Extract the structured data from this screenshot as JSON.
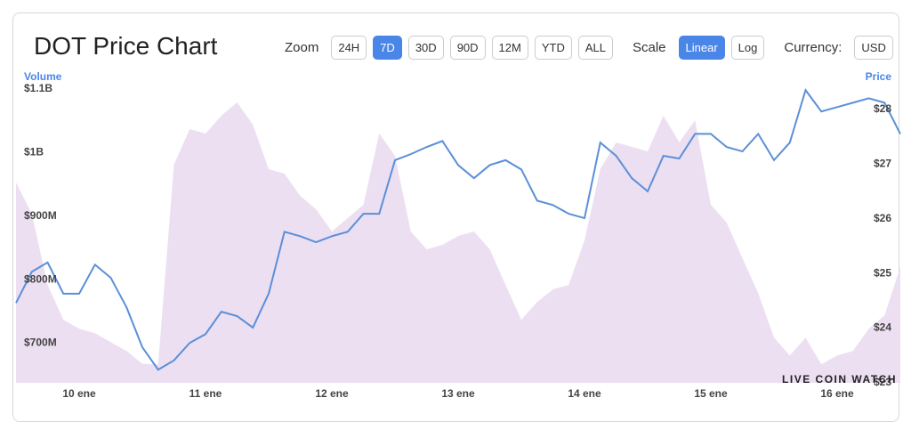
{
  "header": {
    "title": "DOT Price Chart",
    "zoom": {
      "label": "Zoom",
      "options": [
        "24H",
        "7D",
        "30D",
        "90D",
        "12M",
        "YTD",
        "ALL"
      ],
      "selected": "7D"
    },
    "scale": {
      "label": "Scale",
      "options": [
        "Linear",
        "Log"
      ],
      "selected": "Linear"
    },
    "currency": {
      "label": "Currency:",
      "options": [
        "USD"
      ]
    }
  },
  "watermark": "LIVE COIN WATCH",
  "chart_data": {
    "type": "line",
    "categories": [
      null,
      null,
      null,
      null,
      "10 ene",
      null,
      null,
      null,
      null,
      null,
      null,
      null,
      "11 ene",
      null,
      null,
      null,
      null,
      null,
      null,
      null,
      "12 ene",
      null,
      null,
      null,
      null,
      null,
      null,
      null,
      "13 ene",
      null,
      null,
      null,
      null,
      null,
      null,
      null,
      "14 ene",
      null,
      null,
      null,
      null,
      null,
      null,
      null,
      "15 ene",
      null,
      null,
      null,
      null,
      null,
      null,
      null,
      "16 ene",
      null,
      null,
      null,
      null
    ],
    "series": [
      {
        "name": "Volume",
        "type": "area",
        "color": "#ecdff1",
        "values": [
          971000000,
          922000000,
          810000000,
          755000000,
          741000000,
          734000000,
          720000000,
          706000000,
          686000000,
          685000000,
          999000000,
          1055000000,
          1048000000,
          1076000000,
          1097000000,
          1062000000,
          992000000,
          985000000,
          950000000,
          929000000,
          894000000,
          915000000,
          936000000,
          1048000000,
          1013000000,
          894000000,
          866000000,
          873000000,
          887000000,
          894000000,
          866000000,
          810000000,
          755000000,
          783000000,
          803000000,
          810000000,
          880000000,
          992000000,
          1034000000,
          1027000000,
          1020000000,
          1076000000,
          1034000000,
          1069000000,
          936000000,
          908000000,
          852000000,
          797000000,
          727000000,
          699000000,
          727000000,
          685000000,
          699000000,
          706000000,
          741000000,
          762000000,
          838000000
        ]
      },
      {
        "name": "Price",
        "axis": "y2",
        "color": "#5b8fd9",
        "values": [
          24.46,
          25.03,
          25.2,
          24.63,
          24.63,
          25.16,
          24.92,
          24.38,
          23.65,
          23.24,
          23.41,
          23.73,
          23.89,
          24.3,
          24.22,
          24.01,
          24.63,
          25.76,
          25.68,
          25.57,
          25.68,
          25.76,
          26.09,
          26.09,
          27.07,
          27.18,
          27.31,
          27.42,
          26.98,
          26.74,
          26.98,
          27.07,
          26.9,
          26.33,
          26.25,
          26.09,
          26.01,
          27.39,
          27.15,
          26.74,
          26.5,
          27.15,
          27.1,
          27.55,
          27.55,
          27.31,
          27.23,
          27.55,
          27.07,
          27.39,
          28.35,
          27.96,
          28.04,
          28.12,
          28.2,
          28.12,
          27.55
        ]
      }
    ],
    "ylim": [
      656000000,
      1118000000
    ],
    "yticks": [
      {
        "value": 700000000,
        "label": "$700M"
      },
      {
        "value": 800000000,
        "label": "$800M"
      },
      {
        "value": 900000000,
        "label": "$900M"
      },
      {
        "value": 1000000000,
        "label": "$1B"
      },
      {
        "value": 1100000000,
        "label": "$1.1B"
      }
    ],
    "y2lim": [
      23,
      28.37
    ],
    "y2ticks": [
      {
        "value": 23,
        "label": "$23"
      },
      {
        "value": 24,
        "label": "$24"
      },
      {
        "value": 25,
        "label": "$25"
      },
      {
        "value": 26,
        "label": "$26"
      },
      {
        "value": 27,
        "label": "$27"
      },
      {
        "value": 28,
        "label": "$28"
      }
    ],
    "grid": false
  }
}
